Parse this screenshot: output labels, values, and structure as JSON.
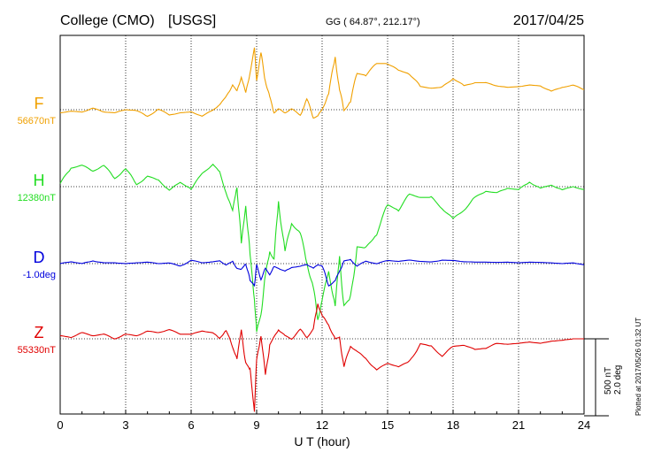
{
  "header": {
    "station": "College (CMO)",
    "network": "[USGS]",
    "coords": "GG ( 64.87°, 212.17°)",
    "date": "2017/04/25"
  },
  "footer": {
    "xlabel": "U T (hour)",
    "plotted": "Plotted at 2017/05/26 01:32 UT"
  },
  "scale": {
    "nt": "500 nT",
    "deg": "2.0 deg",
    "bar_nT": 500
  },
  "colors": {
    "F": "#f0a000",
    "H": "#22dd22",
    "D": "#0000dd",
    "Z": "#e00000"
  },
  "chart_data": {
    "type": "line",
    "xlabel": "U T (hour)",
    "xlim": [
      0,
      24
    ],
    "xticks": [
      0,
      3,
      6,
      9,
      12,
      15,
      18,
      21,
      24
    ],
    "grid": true,
    "series": [
      {
        "key": "F",
        "name": "F",
        "baseline_label": "56670nT",
        "color": "#f0a000",
        "x": [
          0,
          0.5,
          1,
          1.5,
          2,
          2.5,
          3,
          3.5,
          4,
          4.5,
          5,
          5.5,
          6,
          6.5,
          7,
          7.3,
          7.6,
          7.9,
          8.1,
          8.3,
          8.5,
          8.7,
          8.9,
          9.0,
          9.2,
          9.4,
          9.6,
          9.8,
          10.0,
          10.3,
          10.6,
          11.0,
          11.3,
          11.6,
          11.8,
          12.0,
          12.3,
          12.6,
          12.8,
          13.0,
          13.3,
          13.6,
          14.0,
          14.5,
          15.0,
          15.5,
          16.0,
          16.5,
          17.0,
          17.5,
          18.0,
          18.5,
          19.0,
          19.5,
          20.0,
          20.5,
          21.0,
          21.5,
          22.0,
          22.5,
          23.0,
          23.5,
          24.0
        ],
        "y": [
          -20,
          -10,
          -15,
          10,
          -15,
          -20,
          0,
          -5,
          -45,
          5,
          -35,
          -20,
          -15,
          -40,
          -5,
          35,
          80,
          165,
          115,
          220,
          100,
          250,
          390,
          200,
          360,
          190,
          80,
          -20,
          5,
          -20,
          5,
          -35,
          70,
          -55,
          -40,
          0,
          110,
          335,
          135,
          -10,
          60,
          235,
          225,
          300,
          300,
          255,
          235,
          150,
          140,
          145,
          205,
          155,
          175,
          175,
          155,
          145,
          150,
          160,
          155,
          120,
          145,
          160,
          130
        ]
      },
      {
        "key": "H",
        "name": "H",
        "baseline_label": "12380nT",
        "color": "#22dd22",
        "x": [
          0,
          0.5,
          1,
          1.5,
          2,
          2.5,
          3,
          3.5,
          4,
          4.5,
          5,
          5.5,
          6,
          6.5,
          7,
          7.3,
          7.6,
          7.9,
          8.1,
          8.3,
          8.5,
          8.7,
          8.9,
          9.0,
          9.2,
          9.4,
          9.6,
          9.8,
          10.0,
          10.3,
          10.6,
          11.0,
          11.3,
          11.6,
          11.8,
          12.0,
          12.3,
          12.6,
          12.8,
          13.0,
          13.3,
          13.6,
          14.0,
          14.5,
          15.0,
          15.5,
          16.0,
          16.5,
          17.0,
          17.5,
          18.0,
          18.5,
          19.0,
          19.5,
          20.0,
          20.5,
          21.0,
          21.5,
          22.0,
          22.5,
          23.0,
          23.5,
          24.0
        ],
        "y": [
          20,
          120,
          140,
          100,
          140,
          50,
          120,
          10,
          70,
          40,
          -20,
          25,
          -10,
          80,
          150,
          90,
          -30,
          -170,
          25,
          -390,
          -100,
          -460,
          -720,
          -950,
          -820,
          -580,
          -420,
          -480,
          -90,
          -420,
          -240,
          -300,
          -500,
          -650,
          -870,
          -730,
          -560,
          -760,
          -470,
          -770,
          -730,
          -390,
          -400,
          -300,
          -120,
          -150,
          -50,
          -70,
          -70,
          -140,
          -210,
          -150,
          -70,
          -30,
          -40,
          -10,
          -20,
          30,
          -10,
          10,
          -20,
          0,
          -20
        ]
      },
      {
        "key": "D",
        "name": "D",
        "baseline_label": "-1.0deg",
        "color": "#0000dd",
        "x": [
          0,
          0.5,
          1,
          1.5,
          2,
          2.5,
          3,
          3.5,
          4,
          4.5,
          5,
          5.5,
          6,
          6.5,
          7,
          7.3,
          7.6,
          7.9,
          8.1,
          8.3,
          8.5,
          8.7,
          8.9,
          9.0,
          9.2,
          9.4,
          9.6,
          9.8,
          10.0,
          10.3,
          10.6,
          11.0,
          11.3,
          11.6,
          11.8,
          12.0,
          12.3,
          12.6,
          12.8,
          13.0,
          13.3,
          13.6,
          14.0,
          14.5,
          15.0,
          15.5,
          16.0,
          16.5,
          17.0,
          17.5,
          18.0,
          18.5,
          19.0,
          19.5,
          20.0,
          20.5,
          21.0,
          21.5,
          22.0,
          22.5,
          23.0,
          23.5,
          24.0
        ],
        "y": [
          0.0,
          0.05,
          0.0,
          0.07,
          0.02,
          0.02,
          0.0,
          0.02,
          0.04,
          0.0,
          0.02,
          -0.07,
          0.09,
          0.02,
          0.05,
          0.07,
          -0.03,
          0.05,
          -0.12,
          -0.16,
          0.02,
          -0.45,
          -0.55,
          -0.05,
          -0.4,
          -0.13,
          -0.28,
          -0.08,
          -0.12,
          -0.2,
          -0.1,
          -0.07,
          -0.02,
          -0.12,
          -0.03,
          -0.06,
          -0.58,
          -0.44,
          -0.2,
          0.07,
          0.1,
          -0.06,
          0.06,
          0.0,
          0.08,
          0.06,
          0.09,
          0.06,
          0.04,
          0.09,
          0.08,
          0.05,
          0.04,
          0.04,
          0.03,
          0.04,
          0.02,
          0.04,
          0.03,
          0.02,
          0.0,
          0.02,
          -0.03
        ]
      },
      {
        "key": "Z",
        "name": "Z",
        "baseline_label": "55330nT",
        "color": "#e00000",
        "x": [
          0,
          0.5,
          1,
          1.5,
          2,
          2.5,
          3,
          3.5,
          4,
          4.5,
          5,
          5.5,
          6,
          6.5,
          7,
          7.3,
          7.6,
          7.9,
          8.1,
          8.3,
          8.5,
          8.7,
          8.9,
          9.0,
          9.2,
          9.4,
          9.6,
          9.8,
          10.0,
          10.3,
          10.6,
          11.0,
          11.3,
          11.6,
          11.8,
          12.0,
          12.3,
          12.6,
          12.8,
          13.0,
          13.3,
          13.6,
          14.0,
          14.5,
          15.0,
          15.5,
          16.0,
          16.5,
          17.0,
          17.5,
          18.0,
          18.5,
          19.0,
          19.5,
          20.0,
          20.5,
          21.0,
          21.5,
          22.0,
          22.5,
          23.0,
          23.5,
          24.0
        ],
        "y": [
          20,
          10,
          40,
          20,
          30,
          0,
          30,
          20,
          50,
          40,
          60,
          30,
          30,
          50,
          40,
          0,
          60,
          -60,
          -120,
          45,
          -150,
          -210,
          -450,
          -150,
          40,
          -250,
          -35,
          10,
          60,
          20,
          0,
          60,
          10,
          60,
          230,
          150,
          90,
          0,
          10,
          -180,
          -50,
          -80,
          -130,
          -200,
          -160,
          -180,
          -150,
          -30,
          -50,
          -110,
          -50,
          -40,
          -70,
          -60,
          -30,
          -35,
          -30,
          -20,
          -30,
          -15,
          -10,
          0,
          0
        ]
      }
    ]
  }
}
